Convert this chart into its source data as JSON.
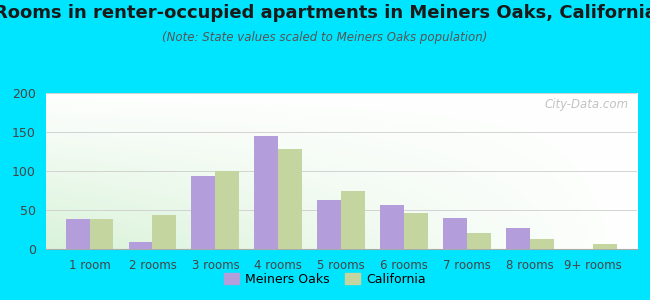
{
  "title": "Rooms in renter-occupied apartments in Meiners Oaks, California",
  "subtitle": "(Note: State values scaled to Meiners Oaks population)",
  "categories": [
    "1 room",
    "2 rooms",
    "3 rooms",
    "4 rooms",
    "5 rooms",
    "6 rooms",
    "7 rooms",
    "8 rooms",
    "9+ rooms"
  ],
  "meiners_oaks": [
    38,
    9,
    93,
    145,
    63,
    56,
    40,
    27,
    0
  ],
  "california": [
    38,
    43,
    100,
    128,
    75,
    46,
    21,
    13,
    7
  ],
  "meiners_oaks_color": "#b39ddb",
  "california_color": "#c5d5a0",
  "background_color": "#00e5ff",
  "ylim": [
    0,
    200
  ],
  "yticks": [
    0,
    50,
    100,
    150,
    200
  ],
  "bar_width": 0.38,
  "watermark": "City-Data.com",
  "legend_labels": [
    "Meiners Oaks",
    "California"
  ],
  "title_fontsize": 13,
  "subtitle_fontsize": 8.5,
  "tick_fontsize": 8.5,
  "ytick_fontsize": 9
}
